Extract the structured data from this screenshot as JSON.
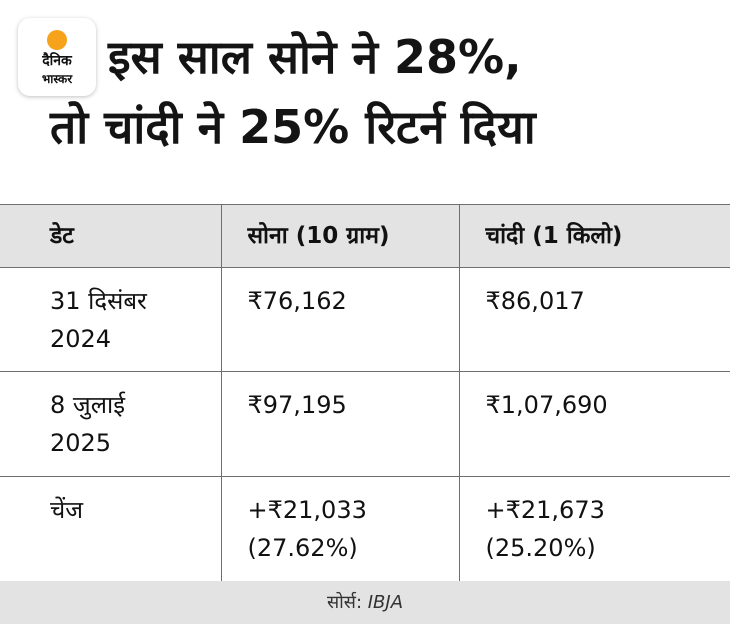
{
  "logo": {
    "line1": "दैनिक",
    "line2": "भास्कर",
    "accent_color": "#f7a21b"
  },
  "title": {
    "line1": "इस साल सोने ने 28%,",
    "line2": "तो चांदी ने 25% रिटर्न दिया"
  },
  "table": {
    "headers": [
      "डेट",
      "सोना (10 ग्राम)",
      "चांदी (1 किलो)"
    ],
    "rows": [
      {
        "date": [
          "31 दिसंबर",
          "2024"
        ],
        "gold": [
          "₹76,162"
        ],
        "silver": [
          "₹86,017"
        ]
      },
      {
        "date": [
          "8 जुलाई",
          "2025"
        ],
        "gold": [
          "₹97,195"
        ],
        "silver": [
          "₹1,07,690"
        ]
      },
      {
        "date": [
          "चेंज"
        ],
        "gold": [
          "+₹21,033",
          "(27.62%)"
        ],
        "silver": [
          "+₹21,673",
          "(25.20%)"
        ]
      }
    ]
  },
  "source": {
    "label": "सोर्स:",
    "org": "IBJA"
  },
  "colors": {
    "header_bg": "#e3e3e3",
    "border": "#6f6f6f",
    "text": "#111111"
  }
}
